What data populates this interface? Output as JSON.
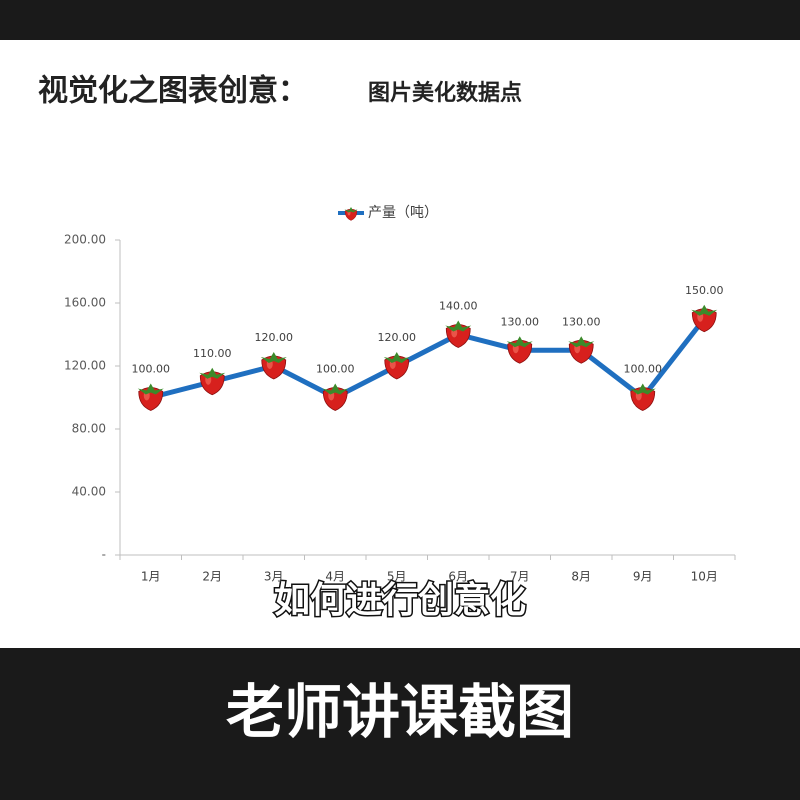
{
  "header": {
    "title": "视觉化之图表创意：",
    "subtitle": "图片美化数据点"
  },
  "chart_data": {
    "type": "line",
    "categories": [
      "1月",
      "2月",
      "3月",
      "4月",
      "5月",
      "6月",
      "7月",
      "8月",
      "9月",
      "10月"
    ],
    "series": [
      {
        "name": "产量（吨）",
        "color": "#1f6fc0",
        "values": [
          100,
          110,
          120,
          100,
          120,
          140,
          130,
          130,
          100,
          150
        ],
        "value_labels": [
          "100.00",
          "110.00",
          "120.00",
          "100.00",
          "120.00",
          "140.00",
          "130.00",
          "130.00",
          "100.00",
          "150.00"
        ]
      }
    ],
    "ylim": [
      0,
      200
    ],
    "yticks": [
      {
        "value": 0,
        "label": "-"
      },
      {
        "value": 40,
        "label": "40.00"
      },
      {
        "value": 80,
        "label": "80.00"
      },
      {
        "value": 120,
        "label": "120.00"
      },
      {
        "value": 160,
        "label": "160.00"
      },
      {
        "value": 200,
        "label": "200.00"
      }
    ],
    "legend": "top",
    "grid": false
  },
  "caption": "如何进行创意化",
  "banner": "老师讲课截图"
}
